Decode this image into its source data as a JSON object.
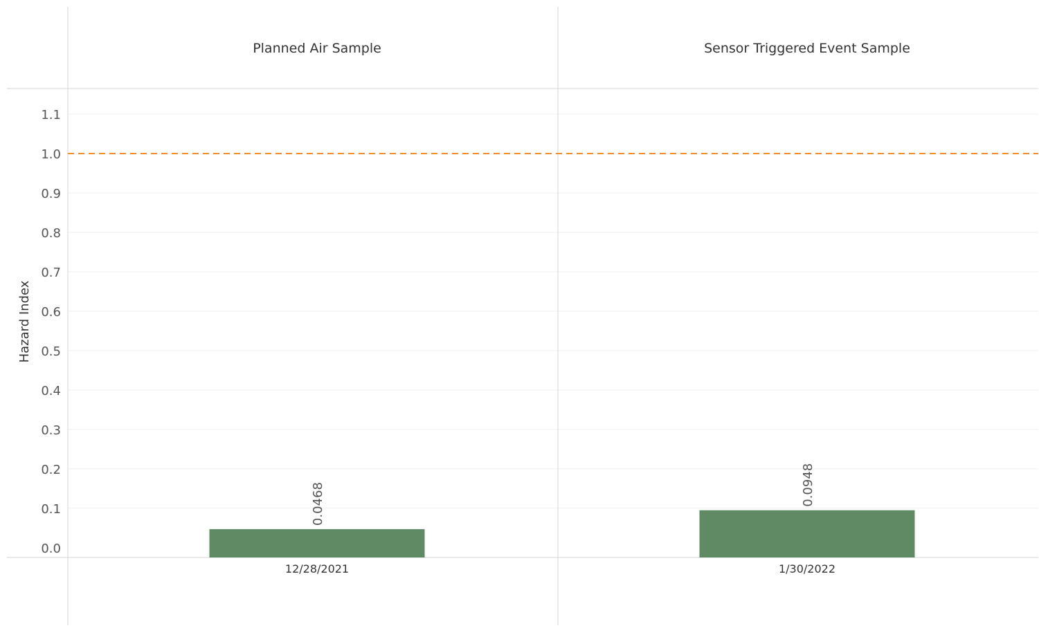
{
  "chart_data": {
    "type": "bar",
    "ylabel": "Hazard Index",
    "ylim": [
      -0.025,
      1.165
    ],
    "yticks": [
      0.0,
      0.1,
      0.2,
      0.3,
      0.4,
      0.5,
      0.6,
      0.7,
      0.8,
      0.9,
      1.0,
      1.1
    ],
    "ytick_labels": [
      "0.0",
      "0.1",
      "0.2",
      "0.3",
      "0.4",
      "0.5",
      "0.6",
      "0.7",
      "0.8",
      "0.9",
      "1.0",
      "1.1"
    ],
    "grid": true,
    "reference_line": {
      "value": 1.0,
      "style": "dashed",
      "color": "#f28e2b"
    },
    "bar_color": "#5f8a64",
    "panels": [
      {
        "title": "Planned Air Sample",
        "categories": [
          "12/28/2021"
        ],
        "values": [
          0.0468
        ],
        "value_labels": [
          "0.0468"
        ]
      },
      {
        "title": "Sensor Triggered Event Sample",
        "categories": [
          "1/30/2022"
        ],
        "values": [
          0.0948
        ],
        "value_labels": [
          "0.0948"
        ]
      }
    ]
  }
}
